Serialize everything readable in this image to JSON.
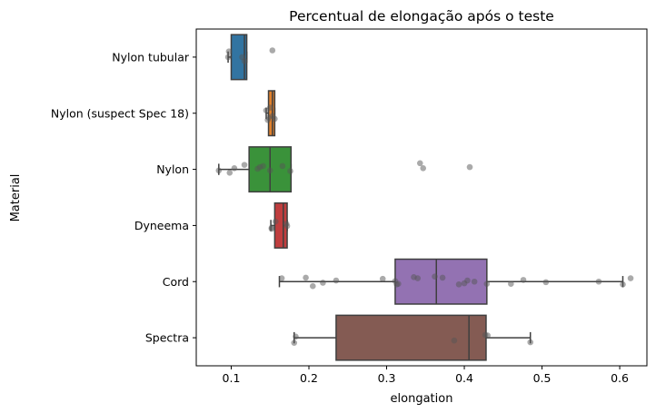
{
  "chart_data": {
    "type": "boxplot",
    "orientation": "horizontal",
    "title": "Percentual de elongação após o teste",
    "xlabel": "elongation",
    "ylabel": "Material",
    "xlim": [
      0.055,
      0.635
    ],
    "xticks": [
      0.1,
      0.2,
      0.3,
      0.4,
      0.5,
      0.6
    ],
    "xtick_labels": [
      "0.1",
      "0.2",
      "0.3",
      "0.4",
      "0.5",
      "0.6"
    ],
    "grid": false,
    "categories": [
      " Nylon tubular ",
      " Nylon (suspect Spec 18) ",
      " Nylon ",
      " Dyneema ",
      " Cord ",
      " Spectra "
    ],
    "box_colors": [
      "#3274a1",
      "#e1812c",
      "#3a923a",
      "#c03d3e",
      "#9372b2",
      "#845b53"
    ],
    "point_color": "#555555",
    "boxes": [
      {
        "whislo": 0.096,
        "q1": 0.1,
        "med": 0.117,
        "q3": 0.12,
        "whishi": 0.12
      },
      {
        "whislo": 0.145,
        "q1": 0.148,
        "med": 0.153,
        "q3": 0.156,
        "whishi": 0.156
      },
      {
        "whislo": 0.084,
        "q1": 0.123,
        "med": 0.15,
        "q3": 0.177,
        "whishi": 0.177
      },
      {
        "whislo": 0.151,
        "q1": 0.156,
        "med": 0.167,
        "q3": 0.172,
        "whishi": 0.172
      },
      {
        "whislo": 0.162,
        "q1": 0.311,
        "med": 0.364,
        "q3": 0.429,
        "whishi": 0.604
      },
      {
        "whislo": 0.181,
        "q1": 0.235,
        "med": 0.406,
        "q3": 0.428,
        "whishi": 0.485
      }
    ],
    "points": [
      [
        [
          0.096,
          0.0
        ],
        [
          0.097,
          -0.1
        ],
        [
          0.114,
          0.0
        ],
        [
          0.117,
          0.07
        ],
        [
          0.153,
          -0.12
        ]
      ],
      [
        [
          0.145,
          -0.05
        ],
        [
          0.148,
          0.08
        ],
        [
          0.15,
          -0.1
        ],
        [
          0.153,
          0.05
        ],
        [
          0.156,
          0.1
        ],
        [
          0.147,
          0.12
        ]
      ],
      [
        [
          0.084,
          0.02
        ],
        [
          0.098,
          0.06
        ],
        [
          0.104,
          -0.02
        ],
        [
          0.117,
          -0.08
        ],
        [
          0.134,
          -0.01
        ],
        [
          0.137,
          -0.04
        ],
        [
          0.141,
          -0.06
        ],
        [
          0.15,
          0.02
        ],
        [
          0.166,
          -0.06
        ],
        [
          0.176,
          0.03
        ],
        [
          0.343,
          -0.11
        ],
        [
          0.347,
          -0.02
        ],
        [
          0.407,
          -0.04
        ]
      ],
      [
        [
          0.152,
          0.04
        ],
        [
          0.157,
          -0.07
        ],
        [
          0.171,
          -0.03
        ],
        [
          0.172,
          0.01
        ],
        [
          0.152,
          0.06
        ]
      ],
      [
        [
          0.165,
          -0.06
        ],
        [
          0.196,
          -0.07
        ],
        [
          0.205,
          0.08
        ],
        [
          0.218,
          0.02
        ],
        [
          0.235,
          -0.02
        ],
        [
          0.295,
          -0.05
        ],
        [
          0.311,
          -0.01
        ],
        [
          0.313,
          0.05
        ],
        [
          0.315,
          0.04
        ],
        [
          0.335,
          -0.08
        ],
        [
          0.34,
          -0.06
        ],
        [
          0.362,
          -0.09
        ],
        [
          0.372,
          -0.07
        ],
        [
          0.393,
          0.05
        ],
        [
          0.4,
          0.03
        ],
        [
          0.404,
          -0.02
        ],
        [
          0.413,
          0.0
        ],
        [
          0.429,
          0.04
        ],
        [
          0.46,
          0.04
        ],
        [
          0.476,
          -0.03
        ],
        [
          0.505,
          0.01
        ],
        [
          0.573,
          0.0
        ],
        [
          0.604,
          0.05
        ],
        [
          0.614,
          -0.06
        ]
      ],
      [
        [
          0.181,
          0.09
        ],
        [
          0.183,
          -0.02
        ],
        [
          0.387,
          0.05
        ],
        [
          0.427,
          -0.05
        ],
        [
          0.43,
          -0.04
        ],
        [
          0.485,
          0.08
        ]
      ]
    ]
  }
}
